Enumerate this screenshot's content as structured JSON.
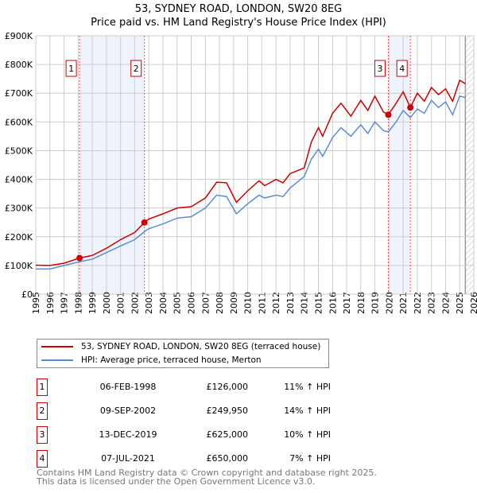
{
  "chart_data": {
    "type": "line",
    "title": "53, SYDNEY ROAD, LONDON, SW20 8EG",
    "subtitle": "Price paid vs. HM Land Registry's House Price Index (HPI)",
    "xlim": [
      1995,
      2026
    ],
    "ylim": [
      0,
      900000
    ],
    "y_ticks": [
      {
        "v": 0,
        "label": "£0"
      },
      {
        "v": 100000,
        "label": "£100K"
      },
      {
        "v": 200000,
        "label": "£200K"
      },
      {
        "v": 300000,
        "label": "£300K"
      },
      {
        "v": 400000,
        "label": "£400K"
      },
      {
        "v": 500000,
        "label": "£500K"
      },
      {
        "v": 600000,
        "label": "£600K"
      },
      {
        "v": 700000,
        "label": "£700K"
      },
      {
        "v": 800000,
        "label": "£800K"
      },
      {
        "v": 900000,
        "label": "£900K"
      }
    ],
    "x_ticks": [
      "1995",
      "1996",
      "1997",
      "1998",
      "1999",
      "2000",
      "2001",
      "2002",
      "2003",
      "2004",
      "2005",
      "2006",
      "2007",
      "2008",
      "2009",
      "2010",
      "2011",
      "2012",
      "2013",
      "2014",
      "2015",
      "2016",
      "2017",
      "2018",
      "2019",
      "2020",
      "2021",
      "2022",
      "2023",
      "2024",
      "2025",
      "2026"
    ],
    "grid": true,
    "forecast_from": 2025.4,
    "series": [
      {
        "name": "53, SYDNEY ROAD, LONDON, SW20 8EG (terraced house)",
        "color": "#cc0000",
        "x": [
          1995,
          1996,
          1997,
          1998.1,
          1999,
          2000,
          2001,
          2002,
          2002.69,
          2003,
          2004,
          2005,
          2006,
          2007,
          2007.8,
          2008.5,
          2009.2,
          2010,
          2010.8,
          2011.2,
          2012,
          2012.5,
          2013,
          2014,
          2014.5,
          2015,
          2015.3,
          2016,
          2016.6,
          2017.3,
          2018,
          2018.5,
          2019,
          2019.6,
          2019.95,
          2020.5,
          2021,
          2021.51,
          2022,
          2022.5,
          2023,
          2023.5,
          2024,
          2024.5,
          2025,
          2025.4
        ],
        "y": [
          101000,
          100000,
          108000,
          126000,
          135000,
          160000,
          190000,
          215000,
          249950,
          262000,
          280000,
          300000,
          305000,
          335000,
          390000,
          388000,
          320000,
          360000,
          395000,
          378000,
          400000,
          388000,
          420000,
          440000,
          530000,
          580000,
          550000,
          630000,
          665000,
          620000,
          675000,
          640000,
          690000,
          635000,
          625000,
          665000,
          705000,
          650000,
          700000,
          672000,
          720000,
          695000,
          715000,
          672000,
          745000,
          733000
        ]
      },
      {
        "name": "HPI: Average price, terraced house, Merton",
        "color": "#5b8dd0",
        "x": [
          1995,
          1996,
          1997,
          1998.1,
          1999,
          2000,
          2001,
          2002,
          2002.69,
          2003,
          2004,
          2005,
          2006,
          2007,
          2007.8,
          2008.5,
          2009.2,
          2010,
          2010.8,
          2011.2,
          2012,
          2012.5,
          2013,
          2014,
          2014.5,
          2015,
          2015.3,
          2016,
          2016.6,
          2017.3,
          2018,
          2018.5,
          2019,
          2019.6,
          2019.95,
          2020.5,
          2021,
          2021.51,
          2022,
          2022.5,
          2023,
          2023.5,
          2024,
          2024.5,
          2025,
          2025.4
        ],
        "y": [
          88000,
          88000,
          100000,
          113000,
          122000,
          145000,
          168000,
          190000,
          218000,
          228000,
          245000,
          265000,
          270000,
          300000,
          345000,
          340000,
          280000,
          315000,
          345000,
          335000,
          345000,
          340000,
          370000,
          410000,
          470000,
          505000,
          480000,
          545000,
          580000,
          550000,
          590000,
          560000,
          600000,
          570000,
          565000,
          600000,
          640000,
          615000,
          645000,
          630000,
          675000,
          650000,
          670000,
          625000,
          690000,
          685000
        ]
      }
    ],
    "sales": [
      {
        "n": "1",
        "x": 1998.1,
        "date": "06-FEB-1998",
        "price": 126000,
        "price_label": "£126,000",
        "hpi": "11% ↑ HPI"
      },
      {
        "n": "2",
        "x": 2002.69,
        "date": "09-SEP-2002",
        "price": 249950,
        "price_label": "£249,950",
        "hpi": "14% ↑ HPI"
      },
      {
        "n": "3",
        "x": 2019.95,
        "date": "13-DEC-2019",
        "price": 625000,
        "price_label": "£625,000",
        "hpi": "10% ↑ HPI"
      },
      {
        "n": "4",
        "x": 2021.51,
        "date": "07-JUL-2021",
        "price": 650000,
        "price_label": "£650,000",
        "hpi": "7% ↑ HPI"
      }
    ],
    "shaded": [
      [
        1998.1,
        2002.69
      ],
      [
        2019.95,
        2021.51
      ]
    ]
  },
  "footer": {
    "line1": "Contains HM Land Registry data © Crown copyright and database right 2025.",
    "line2": "This data is licensed under the Open Government Licence v3.0."
  }
}
